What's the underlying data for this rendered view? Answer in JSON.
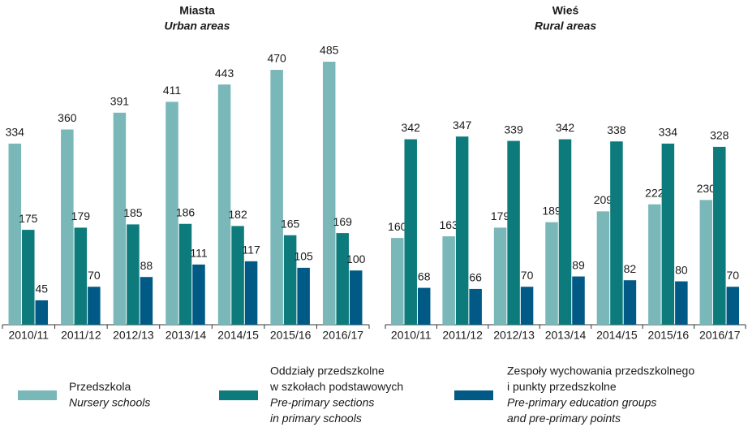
{
  "chart_data": [
    {
      "type": "bar",
      "title": "Miasta",
      "subtitle": "Urban areas",
      "categories": [
        "2010/11",
        "2011/12",
        "2012/13",
        "2013/14",
        "2014/15",
        "2015/16",
        "2016/17"
      ],
      "series": [
        {
          "name": [
            "Przedszkola"
          ],
          "name_en": [
            "Nursery schools"
          ],
          "color": "#79b7b8",
          "values": [
            334,
            360,
            391,
            411,
            443,
            470,
            485
          ]
        },
        {
          "name": [
            "Oddziały przedszkolne",
            "w szkołach podstawowych"
          ],
          "name_en": [
            "Pre-primary sections",
            "in primary schools"
          ],
          "color": "#0d7b7b",
          "values": [
            175,
            179,
            185,
            186,
            182,
            165,
            169
          ]
        },
        {
          "name": [
            "Zespoły wychowania przedszkolnego",
            "i punkty przedszkolne"
          ],
          "name_en": [
            "Pre-primary education groups",
            "and pre-primary points"
          ],
          "color": "#005a85",
          "values": [
            45,
            70,
            88,
            111,
            117,
            105,
            100
          ]
        }
      ]
    },
    {
      "type": "bar",
      "title": "Wieś",
      "subtitle": "Rural areas",
      "categories": [
        "2010/11",
        "2011/12",
        "2012/13",
        "2013/14",
        "2014/15",
        "2015/16",
        "2016/17"
      ],
      "series": [
        {
          "color": "#79b7b8",
          "values": [
            160,
            163,
            179,
            189,
            209,
            222,
            230
          ]
        },
        {
          "color": "#0d7b7b",
          "values": [
            342,
            347,
            339,
            342,
            338,
            334,
            328
          ]
        },
        {
          "color": "#005a85",
          "values": [
            68,
            66,
            70,
            89,
            82,
            80,
            70
          ]
        }
      ]
    }
  ]
}
